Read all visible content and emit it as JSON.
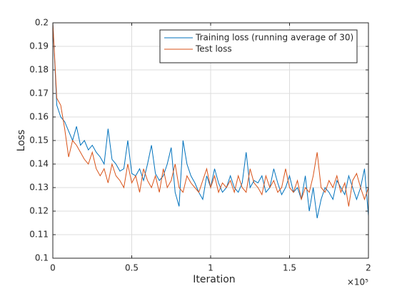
{
  "chart_data": {
    "type": "line",
    "xlabel": "Iteration",
    "ylabel": "Loss",
    "x_multiplier": "×10⁵",
    "x": [
      0,
      0.025,
      0.05,
      0.075,
      0.1,
      0.125,
      0.15,
      0.175,
      0.2,
      0.225,
      0.25,
      0.275,
      0.3,
      0.325,
      0.35,
      0.375,
      0.4,
      0.425,
      0.45,
      0.475,
      0.5,
      0.525,
      0.55,
      0.575,
      0.6,
      0.625,
      0.65,
      0.675,
      0.7,
      0.725,
      0.75,
      0.775,
      0.8,
      0.825,
      0.85,
      0.875,
      0.9,
      0.925,
      0.95,
      0.975,
      1,
      1.025,
      1.05,
      1.075,
      1.1,
      1.125,
      1.15,
      1.175,
      1.2,
      1.225,
      1.25,
      1.275,
      1.3,
      1.325,
      1.35,
      1.375,
      1.4,
      1.425,
      1.45,
      1.475,
      1.5,
      1.525,
      1.55,
      1.575,
      1.6,
      1.625,
      1.65,
      1.675,
      1.7,
      1.725,
      1.75,
      1.775,
      1.8,
      1.825,
      1.85,
      1.875,
      1.9,
      1.925,
      1.95,
      1.975,
      2
    ],
    "series": [
      {
        "name": "Training loss (running average of 30)",
        "color": "#0072bd",
        "values": [
          0.2,
          0.165,
          0.16,
          0.158,
          0.154,
          0.15,
          0.156,
          0.148,
          0.15,
          0.146,
          0.148,
          0.145,
          0.143,
          0.14,
          0.155,
          0.142,
          0.14,
          0.137,
          0.138,
          0.15,
          0.136,
          0.135,
          0.138,
          0.133,
          0.14,
          0.148,
          0.136,
          0.133,
          0.135,
          0.14,
          0.147,
          0.128,
          0.122,
          0.15,
          0.14,
          0.135,
          0.132,
          0.128,
          0.125,
          0.135,
          0.13,
          0.138,
          0.132,
          0.128,
          0.13,
          0.135,
          0.13,
          0.128,
          0.132,
          0.145,
          0.13,
          0.133,
          0.132,
          0.135,
          0.128,
          0.13,
          0.138,
          0.132,
          0.127,
          0.13,
          0.135,
          0.128,
          0.13,
          0.125,
          0.135,
          0.12,
          0.13,
          0.117,
          0.125,
          0.13,
          0.128,
          0.125,
          0.133,
          0.13,
          0.127,
          0.135,
          0.13,
          0.125,
          0.13,
          0.138,
          0.118
        ]
      },
      {
        "name": "Test loss",
        "color": "#d95319",
        "values": [
          0.2,
          0.168,
          0.165,
          0.155,
          0.143,
          0.15,
          0.148,
          0.145,
          0.142,
          0.14,
          0.145,
          0.138,
          0.135,
          0.138,
          0.132,
          0.14,
          0.135,
          0.133,
          0.13,
          0.14,
          0.132,
          0.135,
          0.128,
          0.138,
          0.133,
          0.13,
          0.135,
          0.128,
          0.138,
          0.13,
          0.133,
          0.14,
          0.13,
          0.128,
          0.135,
          0.132,
          0.13,
          0.128,
          0.133,
          0.138,
          0.13,
          0.135,
          0.128,
          0.132,
          0.13,
          0.133,
          0.128,
          0.135,
          0.13,
          0.128,
          0.138,
          0.132,
          0.13,
          0.127,
          0.135,
          0.13,
          0.133,
          0.128,
          0.13,
          0.138,
          0.13,
          0.128,
          0.133,
          0.125,
          0.13,
          0.128,
          0.135,
          0.145,
          0.13,
          0.128,
          0.133,
          0.13,
          0.135,
          0.128,
          0.132,
          0.122,
          0.133,
          0.136,
          0.13,
          0.125,
          0.13
        ]
      }
    ],
    "xlim": [
      0,
      2
    ],
    "xticks": [
      0,
      0.5,
      1,
      1.5,
      2
    ],
    "ylim": [
      0.1,
      0.2
    ],
    "yticks": [
      0.1,
      0.11,
      0.12,
      0.13,
      0.14,
      0.15,
      0.16,
      0.17,
      0.18,
      0.19,
      0.2
    ],
    "grid": true,
    "legend": "top-right"
  }
}
